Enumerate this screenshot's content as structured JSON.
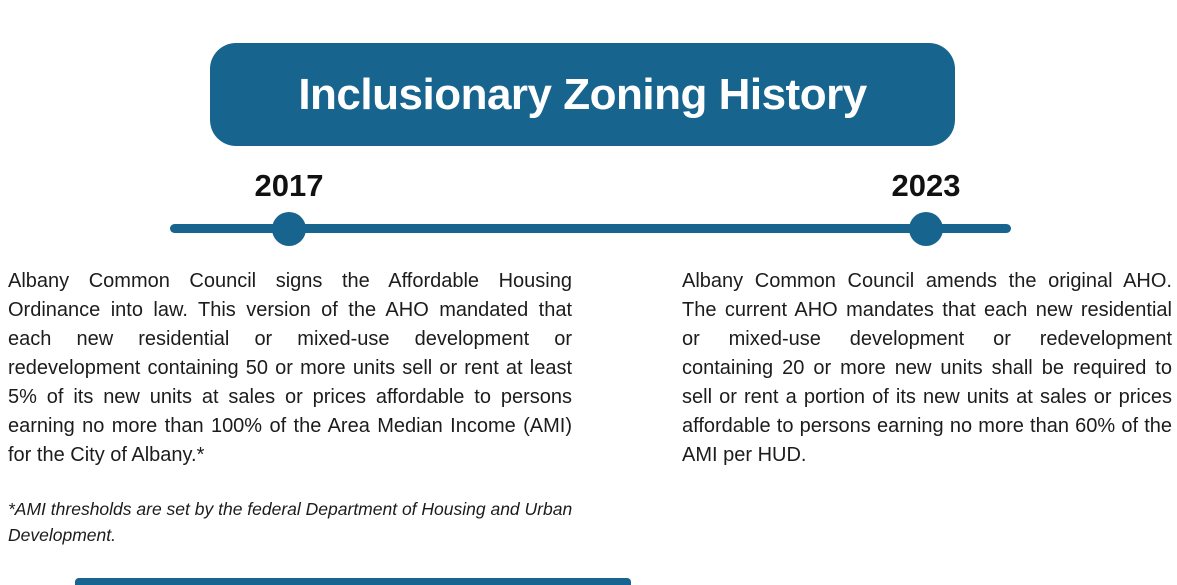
{
  "title": "Inclusionary Zoning History",
  "colors": {
    "primary_blue": "#17648F",
    "body_text": "#1C1C1C",
    "year_text": "#111111",
    "background": "#FFFFFF"
  },
  "timeline": {
    "events": [
      {
        "year": "2017",
        "description": "Albany Common Council signs the Affordable Housing Ordinance into law. This version of the AHO mandated that each new residential or mixed-use development or redevelopment containing 50 or more units sell or rent at least 5% of its new units at sales or prices affordable to persons earning no more than 100% of the Area Median Income (AMI) for the City of Albany.*"
      },
      {
        "year": "2023",
        "description": "Albany Common Council amends the original AHO. The current AHO mandates that each new residential or mixed-use development or redevelopment containing 20 or more new units shall be required to sell or rent a portion of its new units at sales or prices affordable to persons earning no more than 60% of the AMI per HUD."
      }
    ]
  },
  "footnote": "*AMI thresholds are set by the federal Department of Housing and Urban Development."
}
